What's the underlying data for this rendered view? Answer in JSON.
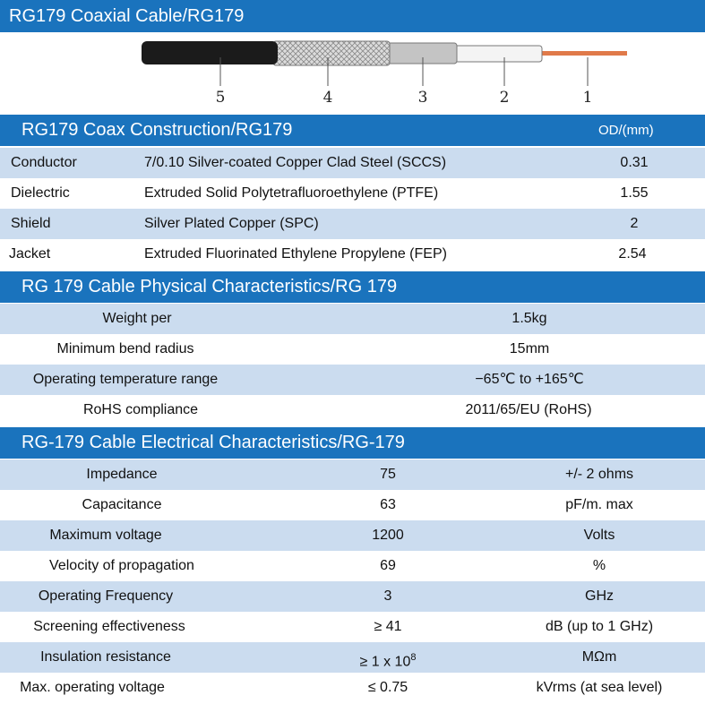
{
  "title": "RG179 Coaxial Cable/RG179",
  "diagram": {
    "labels": [
      "5",
      "4",
      "3",
      "2",
      "1"
    ]
  },
  "construction": {
    "heading": "RG179 Coax Construction/RG179",
    "od_label": "OD/(mm)",
    "rows": [
      {
        "part": "Conductor",
        "material": "7/0.10 Silver-coated Copper Clad Steel (SCCS)",
        "od": "0.31"
      },
      {
        "part": "Dielectric",
        "material": "Extruded Solid Polytetrafluoroethylene (PTFE)",
        "od": "1.55"
      },
      {
        "part": "Shield",
        "material": "Silver Plated Copper (SPC)",
        "od": "2"
      },
      {
        "part": "Jacket",
        "material": "Extruded Fluorinated Ethylene Propylene (FEP)",
        "od": "2.54"
      }
    ]
  },
  "physical": {
    "heading": "RG 179 Cable Physical Characteristics/RG 179",
    "rows": [
      {
        "name": "Weight per",
        "value": "1.5kg"
      },
      {
        "name": "Minimum bend radius",
        "value": "15mm"
      },
      {
        "name": "Operating temperature range",
        "value": "−65℃ to +165℃"
      },
      {
        "name": "RoHS compliance",
        "value": "2011/65/EU (RoHS)"
      }
    ]
  },
  "electrical": {
    "heading": "RG-179 Cable Electrical Characteristics/RG-179",
    "rows": [
      {
        "name": "Impedance",
        "value": "75",
        "unit": "+/- 2 ohms"
      },
      {
        "name": "Capacitance",
        "value": "63",
        "unit": "pF/m. max"
      },
      {
        "name": "Maximum voltage",
        "value": "1200",
        "unit": "Volts"
      },
      {
        "name": "Velocity of propagation",
        "value": "69",
        "unit": "%"
      },
      {
        "name": "Operating Frequency",
        "value": "3",
        "unit": "GHz"
      },
      {
        "name": "Screening effectiveness",
        "value": "≥ 41",
        "unit": "dB (up to 1 GHz)"
      },
      {
        "name": "Insulation resistance",
        "value": "≥ 1 x 10",
        "value_sup": "8",
        "unit": "MΩm"
      },
      {
        "name": "Max. operating voltage",
        "value": "≤ 0.75",
        "unit": "kVrms (at sea level)"
      }
    ]
  },
  "colors": {
    "header_blue": "#1a73bd",
    "row_alt": "#cbdcef",
    "jacket": "#1b1b1b",
    "braid": "#d4d4d4",
    "dielectric": "#bfbfbf",
    "insulation": "#f4f4f4",
    "conductor": "#e07a4a"
  }
}
